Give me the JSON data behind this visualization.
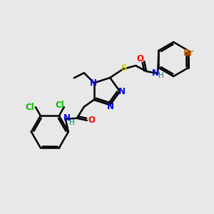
{
  "background_color": "#e8e8e8",
  "figsize": [
    3.0,
    3.0
  ],
  "dpi": 100,
  "colors": {
    "C": "#000000",
    "N": "#0000ee",
    "O": "#ff0000",
    "S": "#cccc00",
    "Cl": "#00bb00",
    "Br": "#cc6600",
    "H": "#000000",
    "bond": "#000000",
    "NH_H": "#008080"
  },
  "bond_lw": 1.6,
  "font_size": 8.5
}
